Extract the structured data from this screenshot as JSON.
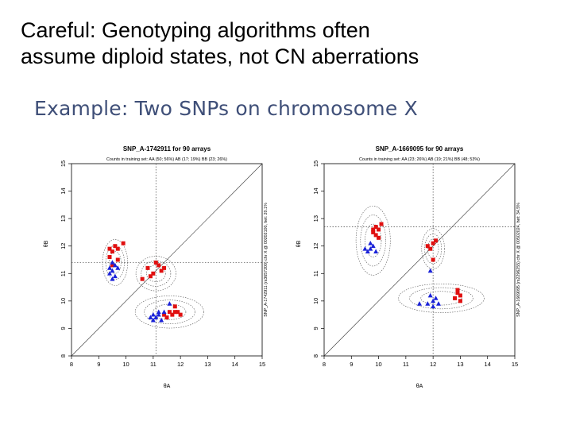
{
  "slide": {
    "title_line1": "Careful: Genotyping algorithms often",
    "title_line2": "assume diploid states, not CN aberrations",
    "subtitle": "Example: Two SNPs on chromosome X"
  },
  "colors": {
    "red": "#e01010",
    "blue": "#1a22d8"
  },
  "chart_data": [
    {
      "type": "scatter",
      "title": "SNP_A-1742911 for 90 arrays",
      "subtitle": "Counts in training set: AA (50; 56%)  AB (17; 19%)  BB (23; 26%)",
      "side_label": "SNP_A-1742911 (rs3657200) chr X @ 00202100, het: 20.1%",
      "xlabel": "θA",
      "ylabel": "θB",
      "xlim": [
        8,
        15
      ],
      "ylim": [
        8,
        15
      ],
      "xticks": [
        "8",
        "9",
        "10",
        "11",
        "12",
        "13",
        "14",
        "15"
      ],
      "yticks": [
        "8",
        "9",
        "10",
        "11",
        "12",
        "13",
        "14",
        "15"
      ],
      "reference_lines": {
        "x": 11.1,
        "y": 11.4
      },
      "clusters": [
        {
          "center": [
            9.6,
            11.4
          ],
          "spread": [
            0.22,
            0.4
          ],
          "red": [
            [
              9.5,
              11.8
            ],
            [
              9.6,
              12.0
            ],
            [
              9.4,
              11.6
            ],
            [
              9.7,
              11.5
            ],
            [
              9.5,
              11.3
            ],
            [
              9.9,
              12.1
            ],
            [
              9.7,
              11.9
            ],
            [
              9.4,
              11.9
            ]
          ],
          "blue": [
            [
              9.5,
              11.1
            ],
            [
              9.6,
              10.9
            ],
            [
              9.4,
              11.0
            ],
            [
              9.7,
              11.2
            ],
            [
              9.5,
              10.8
            ],
            [
              9.6,
              11.3
            ],
            [
              9.4,
              11.2
            ],
            [
              9.5,
              11.4
            ]
          ]
        },
        {
          "center": [
            11.1,
            11.0
          ],
          "spread": [
            0.35,
            0.3
          ],
          "red": [
            [
              10.8,
              11.2
            ],
            [
              11.0,
              11.0
            ],
            [
              11.2,
              11.3
            ],
            [
              11.3,
              11.1
            ],
            [
              10.9,
              10.9
            ],
            [
              11.4,
              11.2
            ],
            [
              10.6,
              10.8
            ],
            [
              11.1,
              11.4
            ]
          ],
          "blue": []
        },
        {
          "center": [
            11.6,
            9.6
          ],
          "spread": [
            0.6,
            0.28
          ],
          "red": [
            [
              11.6,
              9.6
            ],
            [
              11.8,
              9.8
            ],
            [
              11.7,
              9.5
            ],
            [
              11.9,
              9.6
            ],
            [
              11.5,
              9.4
            ],
            [
              12.0,
              9.5
            ],
            [
              11.4,
              9.5
            ],
            [
              11.8,
              9.6
            ]
          ],
          "blue": [
            [
              11.0,
              9.5
            ],
            [
              11.2,
              9.6
            ],
            [
              11.1,
              9.4
            ],
            [
              11.3,
              9.3
            ],
            [
              10.9,
              9.4
            ],
            [
              11.2,
              9.5
            ],
            [
              11.4,
              9.6
            ],
            [
              11.0,
              9.3
            ],
            [
              11.6,
              9.9
            ]
          ]
        }
      ]
    },
    {
      "type": "scatter",
      "title": "SNP_A-1669095 for 90 arrays",
      "subtitle": "Counts in training set: AA (23; 26%)  AB (19; 21%)  BB (48; 53%)",
      "side_label": "SNP_A-1669095 (rs2296255) chr X @ 00502024, het: 34.5%",
      "xlabel": "θA",
      "ylabel": "θB",
      "xlim": [
        8,
        15
      ],
      "ylim": [
        8,
        15
      ],
      "xticks": [
        "8",
        "9",
        "10",
        "11",
        "12",
        "13",
        "14",
        "15"
      ],
      "yticks": [
        "8",
        "9",
        "10",
        "11",
        "12",
        "13",
        "14",
        "15"
      ],
      "reference_lines": {
        "x": 12.0,
        "y": 12.7
      },
      "clusters": [
        {
          "center": [
            9.8,
            12.2
          ],
          "spread": [
            0.3,
            0.6
          ],
          "red": [
            [
              9.9,
              12.7
            ],
            [
              10.0,
              12.6
            ],
            [
              9.8,
              12.5
            ],
            [
              10.1,
              12.8
            ],
            [
              9.9,
              12.4
            ],
            [
              10.0,
              12.3
            ],
            [
              9.8,
              12.6
            ]
          ],
          "blue": [
            [
              9.7,
              11.9
            ],
            [
              9.8,
              12.0
            ],
            [
              9.6,
              11.8
            ],
            [
              9.9,
              11.8
            ],
            [
              9.7,
              12.1
            ],
            [
              9.5,
              11.9
            ]
          ]
        },
        {
          "center": [
            12.0,
            11.9
          ],
          "spread": [
            0.2,
            0.35
          ],
          "red": [
            [
              12.0,
              12.1
            ],
            [
              12.1,
              12.2
            ],
            [
              11.9,
              11.9
            ],
            [
              12.0,
              11.5
            ],
            [
              11.8,
              12.0
            ]
          ],
          "blue": [
            [
              11.9,
              11.1
            ]
          ]
        },
        {
          "center": [
            12.3,
            10.1
          ],
          "spread": [
            0.75,
            0.25
          ],
          "red": [
            [
              12.9,
              10.4
            ],
            [
              13.0,
              10.2
            ],
            [
              12.8,
              10.1
            ],
            [
              13.0,
              10.0
            ],
            [
              12.9,
              10.3
            ]
          ],
          "blue": [
            [
              11.8,
              9.9
            ],
            [
              12.0,
              10.0
            ],
            [
              12.1,
              10.1
            ],
            [
              11.9,
              10.2
            ],
            [
              12.2,
              9.9
            ],
            [
              11.5,
              9.9
            ],
            [
              12.0,
              9.8
            ]
          ]
        }
      ]
    }
  ]
}
